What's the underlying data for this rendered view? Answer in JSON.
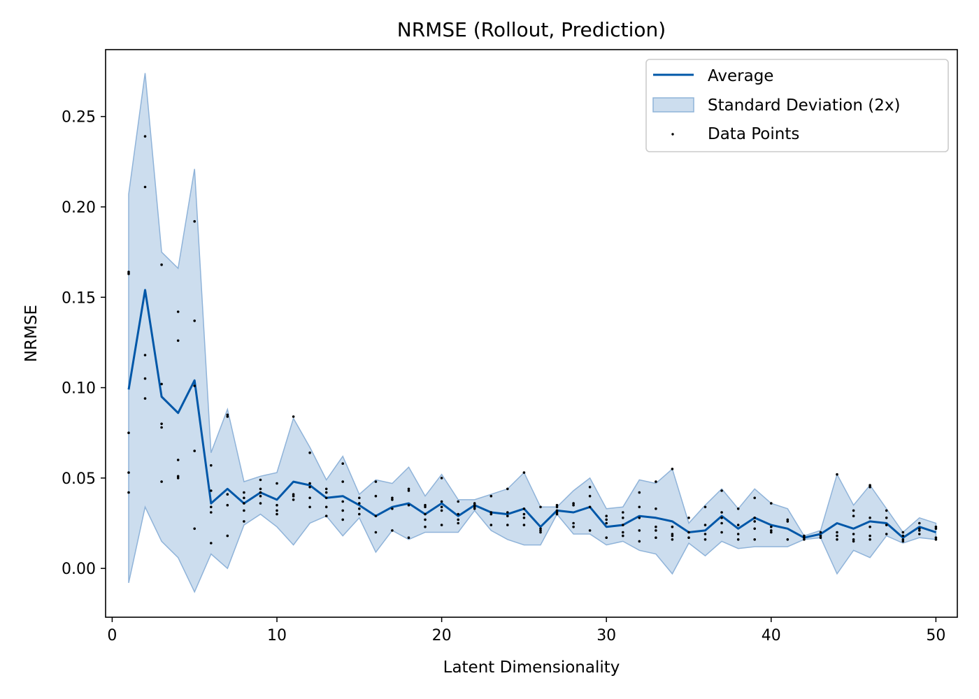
{
  "colors": {
    "line": "#0057a8",
    "band_fill": "#aac6e2",
    "band_edge": "#8fb3d9",
    "points": "#000000"
  },
  "chart_data": {
    "type": "line",
    "title": "NRMSE (Rollout, Prediction)",
    "xlabel": "Latent Dimensionality",
    "ylabel": "NRMSE",
    "xlim": [
      -0.4,
      51.3
    ],
    "ylim": [
      -0.027,
      0.287
    ],
    "xticks": [
      0,
      10,
      20,
      30,
      40,
      50
    ],
    "xtick_labels": [
      "0",
      "10",
      "20",
      "30",
      "40",
      "50"
    ],
    "yticks": [
      0.0,
      0.05,
      0.1,
      0.15,
      0.2,
      0.25
    ],
    "ytick_labels": [
      "0.00",
      "0.05",
      "0.10",
      "0.15",
      "0.20",
      "0.25"
    ],
    "grid": false,
    "legend": {
      "position": "top-right",
      "entries": [
        {
          "label": "Average",
          "kind": "line"
        },
        {
          "label": "Standard Deviation (2x)",
          "kind": "band"
        },
        {
          "label": "Data Points",
          "kind": "point"
        }
      ]
    },
    "x": [
      1,
      2,
      3,
      4,
      5,
      6,
      7,
      8,
      9,
      10,
      11,
      12,
      13,
      14,
      15,
      16,
      17,
      18,
      19,
      20,
      21,
      22,
      23,
      24,
      25,
      26,
      27,
      28,
      29,
      30,
      31,
      32,
      33,
      34,
      35,
      36,
      37,
      38,
      39,
      40,
      41,
      42,
      43,
      44,
      45,
      46,
      47,
      48,
      49,
      50
    ],
    "series": [
      {
        "name": "Average",
        "values": [
          0.099,
          0.154,
          0.095,
          0.086,
          0.104,
          0.036,
          0.044,
          0.036,
          0.042,
          0.038,
          0.048,
          0.046,
          0.039,
          0.04,
          0.035,
          0.029,
          0.034,
          0.036,
          0.03,
          0.036,
          0.029,
          0.035,
          0.031,
          0.03,
          0.033,
          0.023,
          0.032,
          0.031,
          0.034,
          0.023,
          0.024,
          0.029,
          0.028,
          0.026,
          0.02,
          0.021,
          0.029,
          0.022,
          0.028,
          0.024,
          0.022,
          0.017,
          0.019,
          0.025,
          0.022,
          0.026,
          0.025,
          0.017,
          0.023,
          0.02
        ]
      },
      {
        "name": "Standard Deviation (2x)",
        "lower": [
          -0.008,
          0.034,
          0.015,
          0.006,
          -0.013,
          0.008,
          0.0,
          0.024,
          0.03,
          0.023,
          0.013,
          0.025,
          0.029,
          0.018,
          0.028,
          0.009,
          0.021,
          0.016,
          0.02,
          0.02,
          0.02,
          0.032,
          0.021,
          0.016,
          0.013,
          0.013,
          0.03,
          0.019,
          0.019,
          0.013,
          0.015,
          0.01,
          0.008,
          -0.003,
          0.014,
          0.007,
          0.015,
          0.011,
          0.012,
          0.012,
          0.012,
          0.016,
          0.017,
          -0.003,
          0.01,
          0.006,
          0.018,
          0.014,
          0.017,
          0.016
        ],
        "upper": [
          0.207,
          0.274,
          0.175,
          0.166,
          0.221,
          0.064,
          0.088,
          0.048,
          0.051,
          0.053,
          0.083,
          0.067,
          0.049,
          0.062,
          0.041,
          0.049,
          0.047,
          0.056,
          0.04,
          0.052,
          0.038,
          0.038,
          0.041,
          0.044,
          0.053,
          0.034,
          0.034,
          0.043,
          0.05,
          0.033,
          0.034,
          0.049,
          0.047,
          0.055,
          0.025,
          0.035,
          0.044,
          0.033,
          0.044,
          0.036,
          0.033,
          0.018,
          0.021,
          0.052,
          0.035,
          0.046,
          0.033,
          0.02,
          0.028,
          0.025
        ]
      }
    ],
    "points": [
      [
        1,
        0.164
      ],
      [
        1,
        0.163
      ],
      [
        1,
        0.075
      ],
      [
        1,
        0.053
      ],
      [
        1,
        0.042
      ],
      [
        2,
        0.239
      ],
      [
        2,
        0.211
      ],
      [
        2,
        0.118
      ],
      [
        2,
        0.105
      ],
      [
        2,
        0.094
      ],
      [
        3,
        0.168
      ],
      [
        3,
        0.102
      ],
      [
        3,
        0.08
      ],
      [
        3,
        0.078
      ],
      [
        3,
        0.048
      ],
      [
        4,
        0.142
      ],
      [
        4,
        0.126
      ],
      [
        4,
        0.06
      ],
      [
        4,
        0.051
      ],
      [
        4,
        0.05
      ],
      [
        5,
        0.192
      ],
      [
        5,
        0.137
      ],
      [
        5,
        0.101
      ],
      [
        5,
        0.065
      ],
      [
        5,
        0.022
      ],
      [
        6,
        0.057
      ],
      [
        6,
        0.043
      ],
      [
        6,
        0.034
      ],
      [
        6,
        0.031
      ],
      [
        6,
        0.014
      ],
      [
        7,
        0.085
      ],
      [
        7,
        0.084
      ],
      [
        7,
        0.041
      ],
      [
        7,
        0.035
      ],
      [
        7,
        0.018
      ],
      [
        8,
        0.042
      ],
      [
        8,
        0.039
      ],
      [
        8,
        0.036
      ],
      [
        8,
        0.032
      ],
      [
        8,
        0.026
      ],
      [
        9,
        0.049
      ],
      [
        9,
        0.044
      ],
      [
        9,
        0.042
      ],
      [
        9,
        0.04
      ],
      [
        9,
        0.036
      ],
      [
        10,
        0.047
      ],
      [
        10,
        0.035
      ],
      [
        10,
        0.032
      ],
      [
        10,
        0.03
      ],
      [
        11,
        0.084
      ],
      [
        11,
        0.041
      ],
      [
        11,
        0.04
      ],
      [
        11,
        0.038
      ],
      [
        12,
        0.064
      ],
      [
        12,
        0.047
      ],
      [
        12,
        0.045
      ],
      [
        12,
        0.039
      ],
      [
        12,
        0.034
      ],
      [
        13,
        0.044
      ],
      [
        13,
        0.042
      ],
      [
        13,
        0.039
      ],
      [
        13,
        0.034
      ],
      [
        13,
        0.029
      ],
      [
        14,
        0.058
      ],
      [
        14,
        0.048
      ],
      [
        14,
        0.037
      ],
      [
        14,
        0.032
      ],
      [
        14,
        0.027
      ],
      [
        15,
        0.039
      ],
      [
        15,
        0.036
      ],
      [
        15,
        0.033
      ],
      [
        15,
        0.03
      ],
      [
        16,
        0.048
      ],
      [
        16,
        0.04
      ],
      [
        16,
        0.029
      ],
      [
        16,
        0.02
      ],
      [
        17,
        0.039
      ],
      [
        17,
        0.038
      ],
      [
        17,
        0.033
      ],
      [
        17,
        0.021
      ],
      [
        18,
        0.044
      ],
      [
        18,
        0.043
      ],
      [
        18,
        0.035
      ],
      [
        18,
        0.017
      ],
      [
        19,
        0.035
      ],
      [
        19,
        0.034
      ],
      [
        19,
        0.03
      ],
      [
        19,
        0.027
      ],
      [
        19,
        0.023
      ],
      [
        20,
        0.05
      ],
      [
        20,
        0.037
      ],
      [
        20,
        0.034
      ],
      [
        20,
        0.032
      ],
      [
        20,
        0.024
      ],
      [
        21,
        0.037
      ],
      [
        21,
        0.03
      ],
      [
        21,
        0.027
      ],
      [
        21,
        0.025
      ],
      [
        22,
        0.036
      ],
      [
        22,
        0.035
      ],
      [
        22,
        0.034
      ],
      [
        22,
        0.033
      ],
      [
        23,
        0.04
      ],
      [
        23,
        0.031
      ],
      [
        23,
        0.03
      ],
      [
        23,
        0.024
      ],
      [
        24,
        0.044
      ],
      [
        24,
        0.031
      ],
      [
        24,
        0.029
      ],
      [
        24,
        0.024
      ],
      [
        25,
        0.053
      ],
      [
        25,
        0.033
      ],
      [
        25,
        0.03
      ],
      [
        25,
        0.028
      ],
      [
        25,
        0.024
      ],
      [
        26,
        0.034
      ],
      [
        26,
        0.022
      ],
      [
        26,
        0.021
      ],
      [
        26,
        0.02
      ],
      [
        27,
        0.035
      ],
      [
        27,
        0.034
      ],
      [
        27,
        0.032
      ],
      [
        27,
        0.031
      ],
      [
        27,
        0.03
      ],
      [
        28,
        0.036
      ],
      [
        28,
        0.035
      ],
      [
        28,
        0.025
      ],
      [
        28,
        0.023
      ],
      [
        29,
        0.045
      ],
      [
        29,
        0.04
      ],
      [
        29,
        0.034
      ],
      [
        29,
        0.021
      ],
      [
        30,
        0.029
      ],
      [
        30,
        0.027
      ],
      [
        30,
        0.025
      ],
      [
        30,
        0.017
      ],
      [
        31,
        0.031
      ],
      [
        31,
        0.028
      ],
      [
        31,
        0.024
      ],
      [
        31,
        0.02
      ],
      [
        31,
        0.018
      ],
      [
        32,
        0.042
      ],
      [
        32,
        0.034
      ],
      [
        32,
        0.028
      ],
      [
        32,
        0.021
      ],
      [
        32,
        0.015
      ],
      [
        33,
        0.048
      ],
      [
        33,
        0.033
      ],
      [
        33,
        0.023
      ],
      [
        33,
        0.021
      ],
      [
        33,
        0.017
      ],
      [
        34,
        0.055
      ],
      [
        34,
        0.023
      ],
      [
        34,
        0.019
      ],
      [
        34,
        0.018
      ],
      [
        34,
        0.016
      ],
      [
        35,
        0.028
      ],
      [
        35,
        0.02
      ],
      [
        35,
        0.017
      ],
      [
        36,
        0.034
      ],
      [
        36,
        0.024
      ],
      [
        36,
        0.019
      ],
      [
        36,
        0.016
      ],
      [
        37,
        0.043
      ],
      [
        37,
        0.031
      ],
      [
        37,
        0.028
      ],
      [
        37,
        0.025
      ],
      [
        37,
        0.02
      ],
      [
        38,
        0.033
      ],
      [
        38,
        0.024
      ],
      [
        38,
        0.019
      ],
      [
        38,
        0.016
      ],
      [
        39,
        0.039
      ],
      [
        39,
        0.028
      ],
      [
        39,
        0.026
      ],
      [
        39,
        0.022
      ],
      [
        39,
        0.016
      ],
      [
        40,
        0.036
      ],
      [
        40,
        0.023
      ],
      [
        40,
        0.021
      ],
      [
        40,
        0.02
      ],
      [
        41,
        0.027
      ],
      [
        41,
        0.026
      ],
      [
        41,
        0.016
      ],
      [
        42,
        0.018
      ],
      [
        42,
        0.017
      ],
      [
        42,
        0.016
      ],
      [
        43,
        0.02
      ],
      [
        43,
        0.018
      ],
      [
        43,
        0.017
      ],
      [
        44,
        0.052
      ],
      [
        44,
        0.02
      ],
      [
        44,
        0.018
      ],
      [
        44,
        0.016
      ],
      [
        45,
        0.032
      ],
      [
        45,
        0.029
      ],
      [
        45,
        0.019
      ],
      [
        45,
        0.016
      ],
      [
        45,
        0.015
      ],
      [
        46,
        0.046
      ],
      [
        46,
        0.045
      ],
      [
        46,
        0.028
      ],
      [
        46,
        0.023
      ],
      [
        46,
        0.018
      ],
      [
        46,
        0.016
      ],
      [
        47,
        0.032
      ],
      [
        47,
        0.028
      ],
      [
        47,
        0.024
      ],
      [
        47,
        0.019
      ],
      [
        48,
        0.02
      ],
      [
        48,
        0.018
      ],
      [
        48,
        0.016
      ],
      [
        48,
        0.015
      ],
      [
        49,
        0.025
      ],
      [
        49,
        0.022
      ],
      [
        49,
        0.021
      ],
      [
        49,
        0.019
      ],
      [
        50,
        0.023
      ],
      [
        50,
        0.022
      ],
      [
        50,
        0.017
      ],
      [
        50,
        0.016
      ]
    ]
  }
}
